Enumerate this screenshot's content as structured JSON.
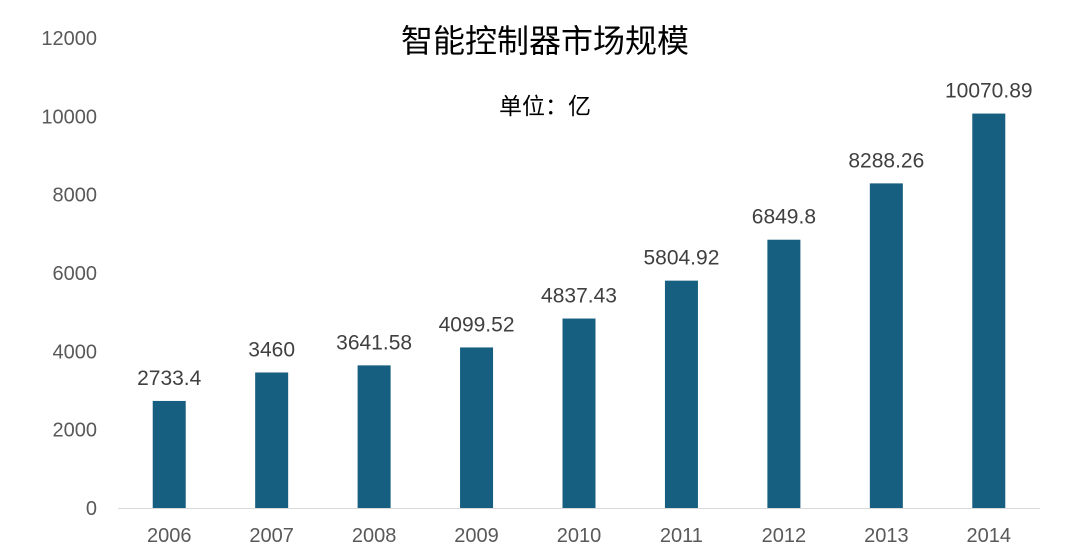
{
  "chart_data": {
    "type": "bar",
    "title": "智能控制器市场规模",
    "subtitle": "单位：亿",
    "xlabel": "",
    "ylabel": "",
    "categories": [
      "2006",
      "2007",
      "2008",
      "2009",
      "2010",
      "2011",
      "2012",
      "2013",
      "2014"
    ],
    "values": [
      2733.4,
      3460,
      3641.58,
      4099.52,
      4837.43,
      5804.92,
      6849.8,
      8288.26,
      10070.89
    ],
    "data_labels": [
      "2733.4",
      "3460",
      "3641.58",
      "4099.52",
      "4837.43",
      "5804.92",
      "6849.8",
      "8288.26",
      "10070.89"
    ],
    "ylim": [
      0,
      12000
    ],
    "yticks": [
      "0",
      "2000",
      "4000",
      "6000",
      "8000",
      "10000",
      "12000"
    ],
    "grid": false,
    "legend": "none",
    "bar_color": "#175F80",
    "axis_color": "#D9D9D9"
  }
}
